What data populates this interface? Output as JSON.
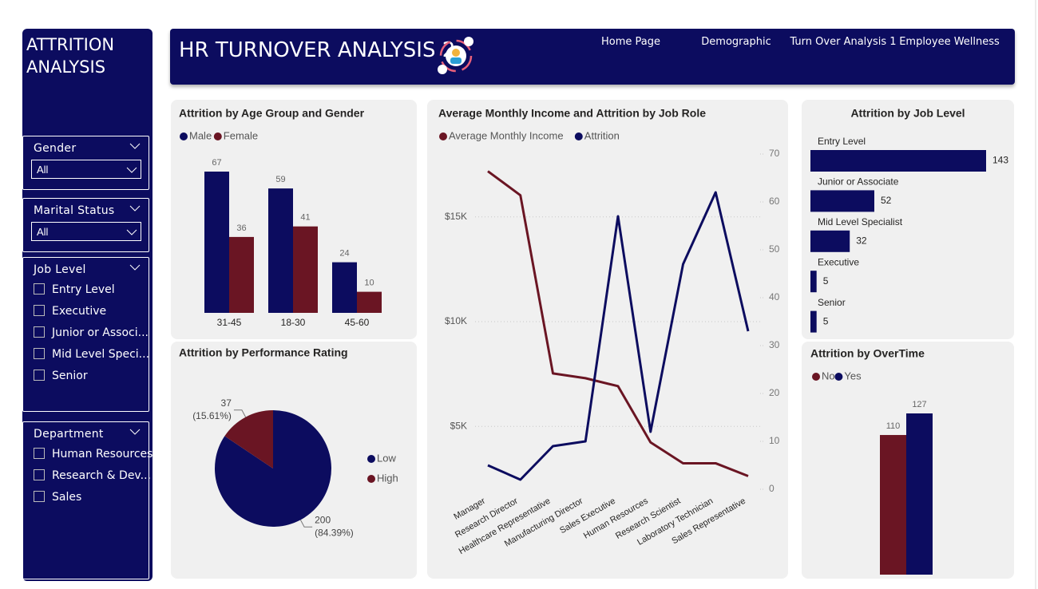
{
  "sidebar": {
    "title": "ATTRITION ANALYSIS",
    "slicers": [
      {
        "label": "Gender",
        "selected": "All"
      },
      {
        "label": "Marital Status",
        "selected": "All"
      },
      {
        "label": "Job Level",
        "items": [
          "Entry Level",
          "Executive",
          "Junior or Associ...",
          "Mid Level Speci...",
          "Senior"
        ]
      },
      {
        "label": "Department",
        "items": [
          "Human Resources",
          "Research & Dev...",
          "Sales"
        ]
      }
    ]
  },
  "header": {
    "title": "HR TURNOVER ANALYSIS 2",
    "nav": [
      "Home Page",
      "Demographic",
      "Turn Over Analysis 1",
      "Employee Wellness"
    ]
  },
  "chart_data": [
    {
      "type": "bar",
      "title": "Attrition by Age Group and Gender",
      "categories": [
        "31-45",
        "18-30",
        "45-60"
      ],
      "series": [
        {
          "name": "Male",
          "color": "#0c0c5f",
          "values": [
            67,
            59,
            24
          ]
        },
        {
          "name": "Female",
          "color": "#6a1523",
          "values": [
            36,
            41,
            10
          ]
        }
      ]
    },
    {
      "type": "pie",
      "title": "Attrition by Performance Rating",
      "categories": [
        "Low",
        "High"
      ],
      "values": [
        200,
        37
      ],
      "colors": [
        "#0c0c5f",
        "#6a1523"
      ],
      "percent_labels": [
        "(84.39%)",
        "(15.61%)"
      ]
    },
    {
      "type": "line",
      "title": "Average Monthly Income and Attrition by Job Role",
      "categories": [
        "Manager",
        "Research Director",
        "Healthcare Representative",
        "Manufacturing Director",
        "Sales Executive",
        "Human Resources",
        "Research Scientist",
        "Laboratory Technician",
        "Sales Representative"
      ],
      "series": [
        {
          "name": "Average Monthly Income",
          "color": "#6a1523",
          "values": [
            17180,
            16030,
            7530,
            7300,
            6920,
            4240,
            3240,
            3240,
            2630
          ]
        },
        {
          "name": "Attrition",
          "color": "#0c0c5f",
          "axis": "y2",
          "values": [
            5,
            2,
            9,
            10,
            57,
            12,
            47,
            62,
            33
          ]
        }
      ],
      "ylim": [
        2000,
        18000
      ],
      "yticks": [
        {
          "value": 5000,
          "label": "$5K"
        },
        {
          "value": 10000,
          "label": "$10K"
        },
        {
          "value": 15000,
          "label": "$15K"
        }
      ],
      "y2lim": [
        0,
        70
      ],
      "y2ticks": [
        0,
        10,
        20,
        30,
        40,
        50,
        60,
        70
      ],
      "grid": true
    },
    {
      "type": "bar",
      "orientation": "horizontal",
      "title": "Attrition by Job Level",
      "categories": [
        "Entry Level",
        "Junior or Associate",
        "Mid Level Specialist",
        "Executive",
        "Senior"
      ],
      "values": [
        143,
        52,
        32,
        5,
        5
      ],
      "color": "#0c0c5f"
    },
    {
      "type": "bar",
      "title": "Attrition by OverTime",
      "categories": [
        null
      ],
      "series": [
        {
          "name": "No",
          "color": "#6a1523",
          "values": [
            110
          ]
        },
        {
          "name": "Yes",
          "color": "#0c0c5f",
          "values": [
            127
          ]
        }
      ]
    }
  ]
}
